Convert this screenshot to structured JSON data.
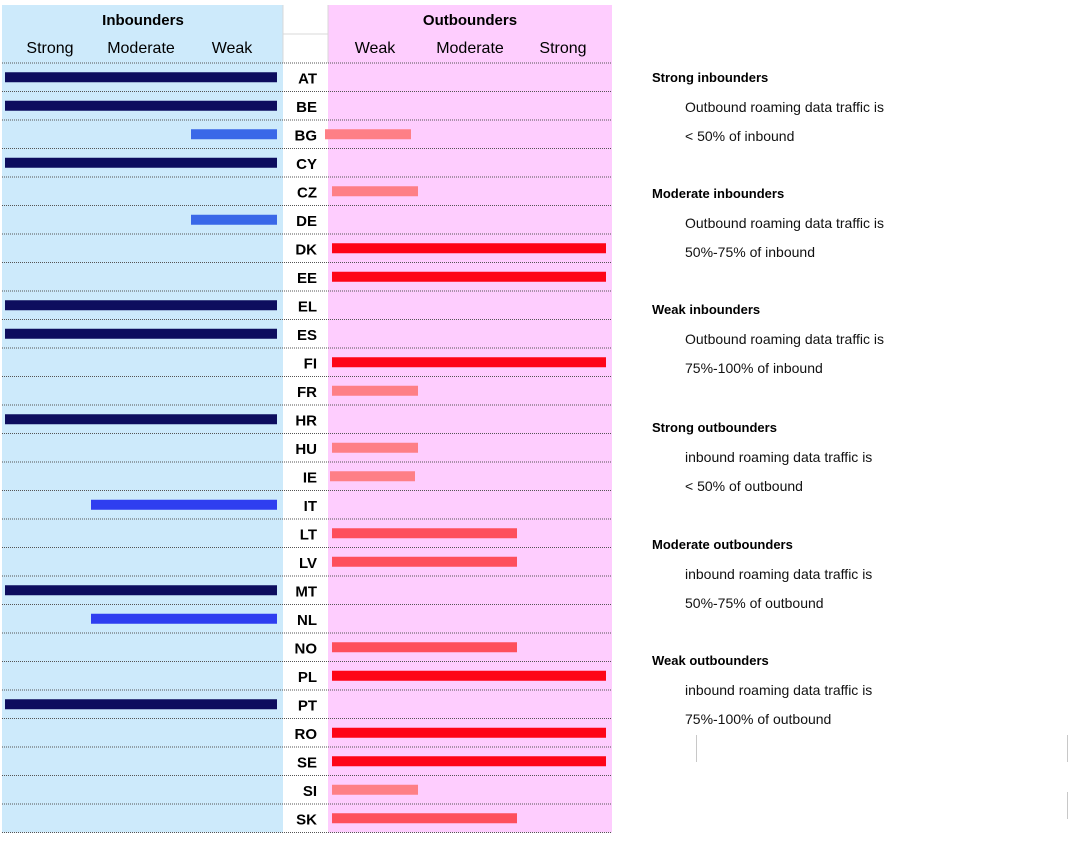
{
  "chart_data": {
    "type": "bar",
    "left_header": "Inbounders",
    "right_header": "Outbounders",
    "left_levels": [
      "Strong",
      "Moderate",
      "Weak"
    ],
    "right_levels": [
      "Weak",
      "Moderate",
      "Strong"
    ],
    "categories": [
      "AT",
      "BE",
      "BG",
      "CY",
      "CZ",
      "DE",
      "DK",
      "EE",
      "EL",
      "ES",
      "FI",
      "FR",
      "HR",
      "HU",
      "IE",
      "IT",
      "LT",
      "LV",
      "MT",
      "NL",
      "NO",
      "PL",
      "PT",
      "RO",
      "SE",
      "SI",
      "SK"
    ],
    "series": [
      {
        "name": "Inbounders",
        "values": [
          3,
          3,
          1,
          3,
          0,
          1,
          0,
          0,
          3,
          3,
          0,
          0,
          3,
          0,
          0,
          2,
          0,
          0,
          3,
          2,
          0,
          0,
          3,
          0,
          0,
          0,
          0
        ]
      },
      {
        "name": "Outbounders",
        "values": [
          0,
          0,
          1,
          0,
          1,
          0,
          3,
          3,
          0,
          0,
          3,
          1,
          0,
          1,
          1,
          0,
          2,
          2,
          0,
          0,
          2,
          3,
          0,
          3,
          3,
          1,
          2
        ]
      }
    ],
    "value_scale": {
      "0": "none",
      "1": "Weak",
      "2": "Moderate",
      "3": "Strong"
    },
    "colors": {
      "inbound_bg": "#cdeafb",
      "outbound_bg": "#fecdfe",
      "in_strong": "#0d0d5e",
      "in_moderate": "#2f3ef0",
      "in_weak": "#3a68e8",
      "out_weak": "#fe7f86",
      "out_moderate": "#fe4f5c",
      "out_strong": "#fe0517"
    }
  },
  "legend": [
    {
      "heading": "Strong inbounders",
      "lines": [
        "Outbound roaming data traffic is",
        "< 50% of inbound"
      ]
    },
    {
      "heading": "Moderate inbounders",
      "lines": [
        "Outbound roaming data traffic is",
        "50%-75% of inbound"
      ]
    },
    {
      "heading": "Weak inbounders",
      "lines": [
        "Outbound roaming data traffic is",
        "75%-100% of inbound"
      ]
    },
    {
      "heading": "Strong outbounders",
      "lines": [
        "inbound roaming data traffic is",
        "< 50% of outbound"
      ]
    },
    {
      "heading": "Moderate outbounders",
      "lines": [
        "inbound roaming data traffic is",
        "50%-75% of outbound"
      ]
    },
    {
      "heading": "Weak outbounders",
      "lines": [
        "inbound roaming data traffic is",
        "75%-100% of outbound"
      ]
    }
  ]
}
